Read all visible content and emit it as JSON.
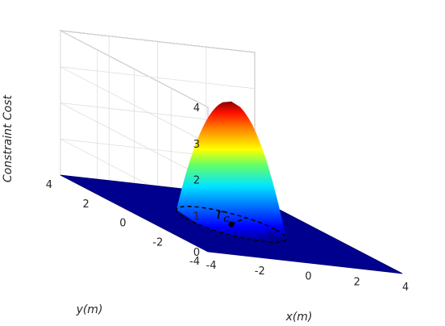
{
  "chart_data": {
    "type": "surface",
    "title": "",
    "xlabel": "x(m)",
    "ylabel": "y(m)",
    "zlabel": "Constraint Cost",
    "xlim": [
      -4,
      4
    ],
    "ylim": [
      -4,
      4
    ],
    "zlim": [
      0,
      4
    ],
    "xticks": [
      "-4",
      "-2",
      "0",
      "2",
      "4"
    ],
    "yticks": [
      "-4",
      "-2",
      "0",
      "2",
      "4"
    ],
    "zticks": [
      "0",
      "1",
      "2",
      "3",
      "4"
    ],
    "grid": true,
    "colormap": "jet",
    "surface": {
      "description": "paraboloid cost",
      "peak": 3.4,
      "radius": 1.8,
      "floor_value": 0
    },
    "annotation": {
      "symbol": "r",
      "subscript": "c",
      "circle_radius": 1.8
    }
  }
}
